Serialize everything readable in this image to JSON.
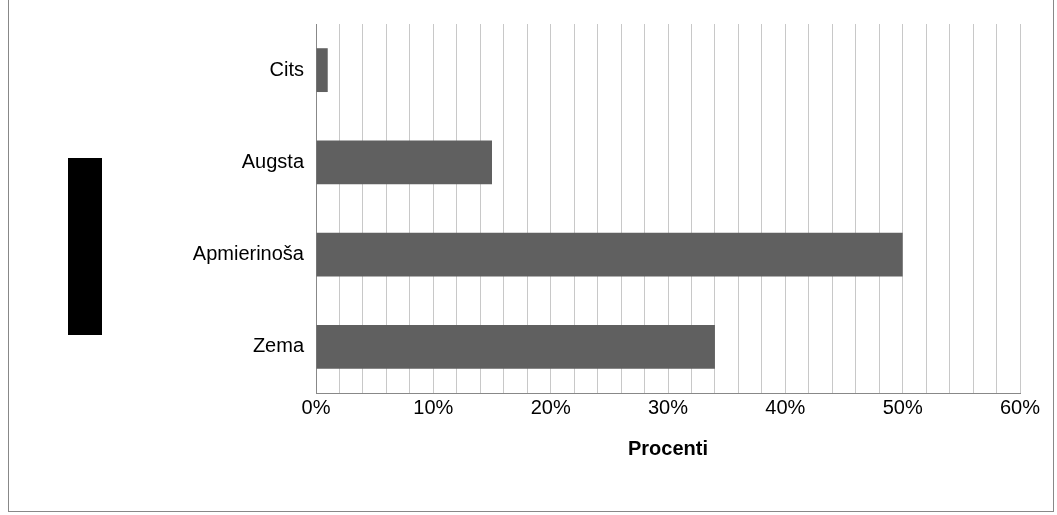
{
  "chart_data": {
    "type": "bar",
    "orientation": "horizontal",
    "xlabel": "Procenti",
    "categories": [
      "Cits",
      "Augsta",
      "Apmierinoša",
      "Zema"
    ],
    "values": [
      1,
      15,
      50,
      34
    ],
    "color": "#606060",
    "xlim": [
      0,
      60
    ],
    "xticks": [
      {
        "value": 0,
        "label": "0%"
      },
      {
        "value": 2,
        "label": null
      },
      {
        "value": 4,
        "label": null
      },
      {
        "value": 6,
        "label": null
      },
      {
        "value": 8,
        "label": null
      },
      {
        "value": 10,
        "label": "10%"
      },
      {
        "value": 12,
        "label": null
      },
      {
        "value": 14,
        "label": null
      },
      {
        "value": 16,
        "label": null
      },
      {
        "value": 18,
        "label": null
      },
      {
        "value": 20,
        "label": "20%"
      },
      {
        "value": 22,
        "label": null
      },
      {
        "value": 24,
        "label": null
      },
      {
        "value": 26,
        "label": null
      },
      {
        "value": 28,
        "label": null
      },
      {
        "value": 30,
        "label": "30%"
      },
      {
        "value": 32,
        "label": null
      },
      {
        "value": 34,
        "label": null
      },
      {
        "value": 36,
        "label": null
      },
      {
        "value": 38,
        "label": null
      },
      {
        "value": 40,
        "label": "40%"
      },
      {
        "value": 42,
        "label": null
      },
      {
        "value": 44,
        "label": null
      },
      {
        "value": 46,
        "label": null
      },
      {
        "value": 48,
        "label": null
      },
      {
        "value": 50,
        "label": "50%"
      },
      {
        "value": 52,
        "label": null
      },
      {
        "value": 54,
        "label": null
      },
      {
        "value": 56,
        "label": null
      },
      {
        "value": 58,
        "label": null
      },
      {
        "value": 60,
        "label": "60%"
      }
    ],
    "grid": "x"
  }
}
